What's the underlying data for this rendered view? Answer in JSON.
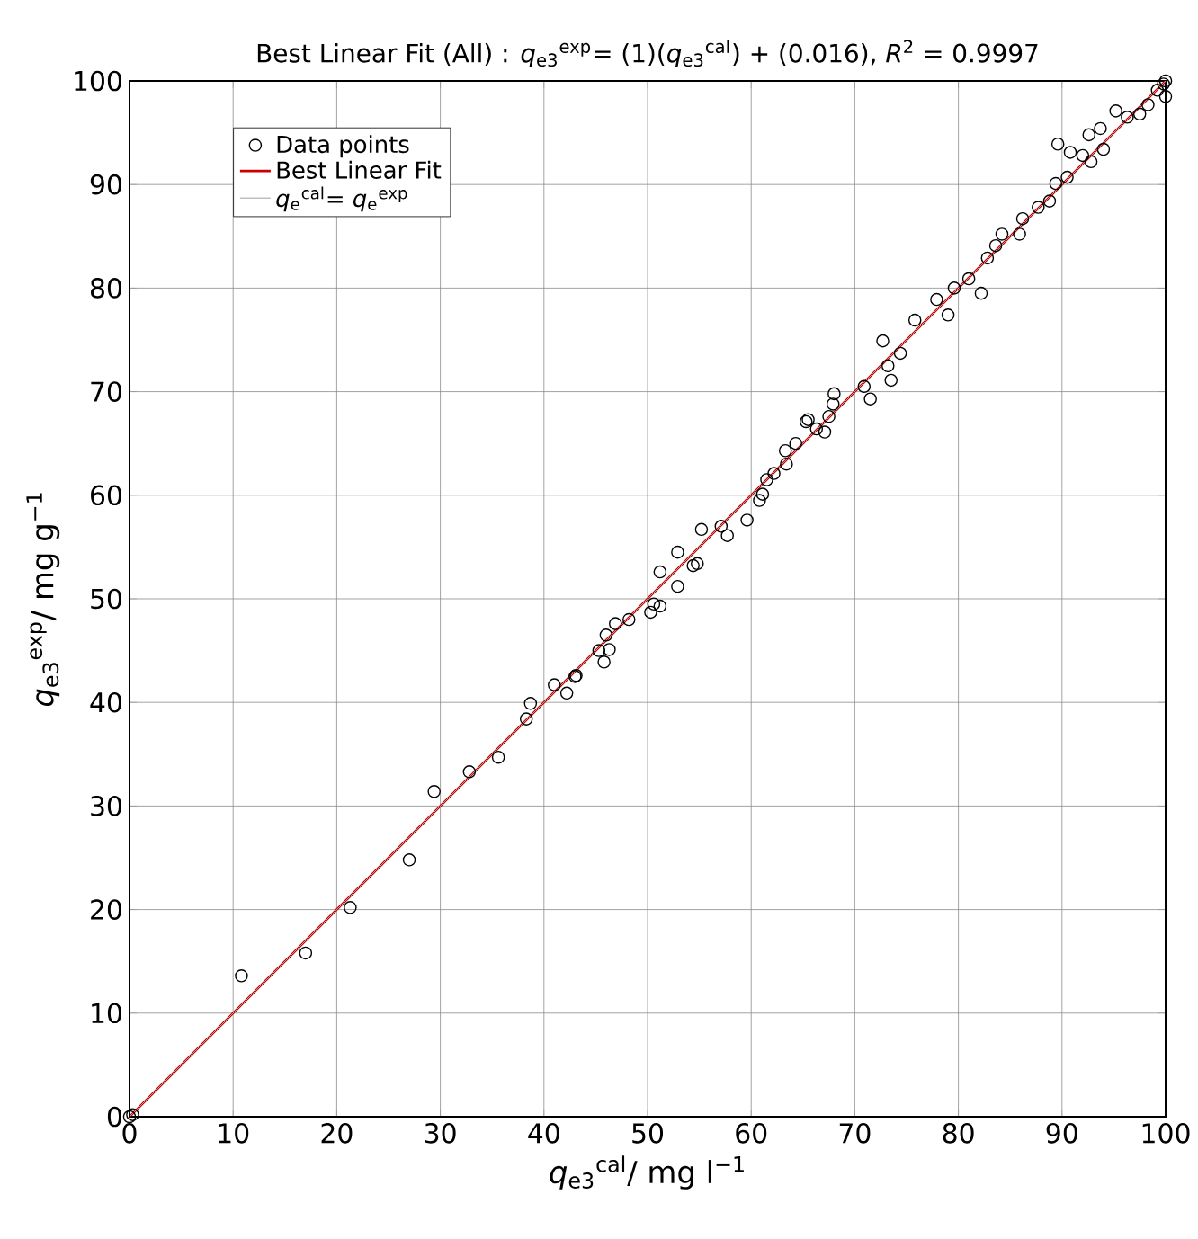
{
  "chart_data": {
    "type": "scatter",
    "title": "Best Linear Fit (All) : *q*$_{e3}$$^{exp}$= (1)(*q*$_{e3}$$^{cal}$) + (0.016), *R*$^{2}$ = 0.9997",
    "xlabel": "*q*$_{e3}$$^{cal}$/ mg l$^{−1}$",
    "ylabel": "*q*$_{e3}$$^{exp}$/ mg g$^{−1}$",
    "xlim": [
      0,
      100
    ],
    "ylim": [
      0,
      100
    ],
    "xticks": [
      0,
      10,
      20,
      30,
      40,
      50,
      60,
      70,
      80,
      90,
      100
    ],
    "yticks": [
      0,
      10,
      20,
      30,
      40,
      50,
      60,
      70,
      80,
      90,
      100
    ],
    "grid": true,
    "legend": "top left",
    "series": [
      {
        "marker": "circle",
        "name": "Data points",
        "color": "#000000",
        "x": [
          0,
          0.3,
          10.8,
          17.0,
          21.3,
          27.0,
          29.4,
          32.8,
          35.6,
          38.3,
          38.7,
          41.0,
          42.2,
          43.0,
          43.1,
          45.3,
          46.0,
          45.8,
          46.3,
          46.9,
          48.2,
          50.3,
          50.6,
          51.2,
          51.2,
          52.9,
          52.9,
          54.4,
          54.8,
          55.2,
          57.1,
          57.7,
          59.6,
          60.8,
          61.1,
          61.5,
          62.2,
          63.4,
          63.3,
          64.3,
          65.3,
          65.5,
          66.3,
          67.1,
          67.5,
          67.9,
          68.0,
          70.9,
          71.5,
          72.7,
          73.2,
          73.5,
          74.4,
          75.8,
          77.9,
          79.0,
          79.6,
          81.0,
          82.2,
          82.8,
          83.6,
          84.2,
          85.9,
          86.2,
          87.7,
          88.8,
          89.4,
          89.6,
          90.5,
          90.8,
          92.0,
          92.8,
          92.6,
          93.7,
          94.0,
          95.2,
          96.3,
          97.5,
          98.3,
          99.2,
          99.8,
          100,
          100
        ],
        "values": [
          0,
          0.2,
          13.6,
          15.8,
          20.2,
          24.8,
          31.4,
          33.3,
          34.7,
          38.4,
          39.9,
          41.7,
          40.9,
          42.5,
          42.6,
          45.0,
          46.5,
          43.9,
          45.1,
          47.6,
          48.0,
          48.7,
          49.5,
          49.3,
          52.6,
          54.5,
          51.2,
          53.2,
          53.4,
          56.7,
          57.0,
          56.1,
          57.6,
          59.5,
          60.1,
          61.5,
          62.1,
          63.0,
          64.3,
          65.0,
          67.1,
          67.3,
          66.4,
          66.1,
          67.6,
          68.8,
          69.8,
          70.5,
          69.3,
          74.9,
          72.5,
          71.1,
          73.7,
          76.9,
          78.9,
          77.4,
          80.0,
          80.9,
          79.5,
          82.9,
          84.1,
          85.2,
          85.2,
          86.7,
          87.8,
          88.4,
          90.1,
          93.9,
          90.7,
          93.1,
          92.8,
          92.2,
          94.8,
          95.4,
          93.4,
          97.1,
          96.5,
          96.8,
          97.7,
          99.1,
          99.7,
          98.5,
          100
        ]
      },
      {
        "type": "line",
        "marker": "none",
        "name": "Best Linear Fit",
        "color": "#cc0000",
        "x": [
          0,
          100
        ],
        "values": [
          0,
          100
        ]
      },
      {
        "type": "line",
        "name": "*q*$_{e}$$^{cal}$= *q*$_{e}$$^{exp}$",
        "color": "#a0a0a0",
        "line_style": "solid",
        "marker": "none",
        "x": [
          0,
          100
        ],
        "values": [
          0,
          100
        ]
      }
    ]
  }
}
